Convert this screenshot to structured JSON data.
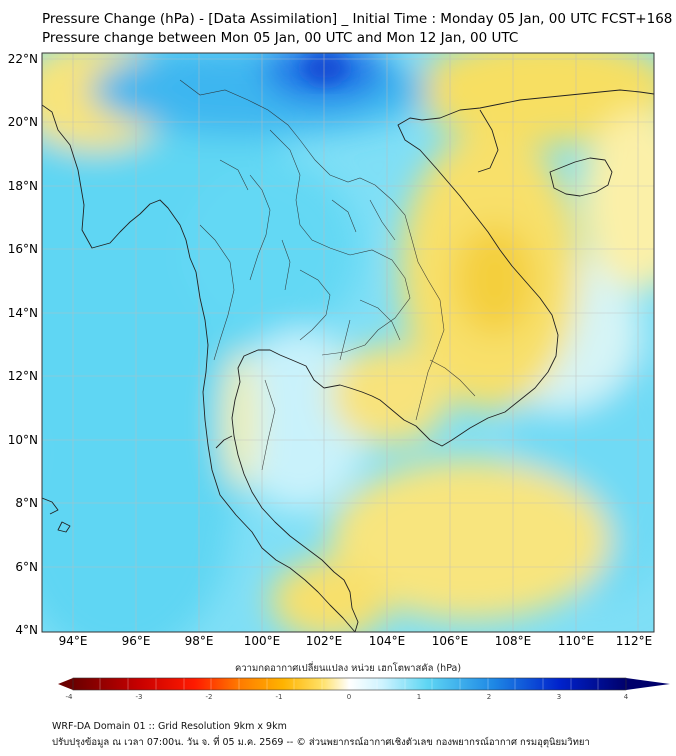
{
  "header": {
    "title_line1": "Pressure Change (hPa) - [Data Assimilation] _ Initial Time : Monday 05 Jan, 00 UTC FCST+168",
    "title_line2": "Pressure change between Mon 05 Jan, 00 UTC and Mon 12 Jan, 00 UTC"
  },
  "map": {
    "lat_labels": [
      "22°N",
      "20°N",
      "18°N",
      "16°N",
      "14°N",
      "12°N",
      "10°N",
      "8°N",
      "6°N",
      "4°N"
    ],
    "lon_labels": [
      "94°E",
      "96°E",
      "98°E",
      "100°E",
      "102°E",
      "104°E",
      "106°E",
      "108°E",
      "110°E",
      "112°E"
    ],
    "lat_range": [
      4,
      22.2
    ],
    "lon_range": [
      93,
      112.5
    ],
    "colors": {
      "ocean": "#5fd6f3",
      "positive_strong": "#1e6fe6",
      "negative": "#f8dc55",
      "coastline": "#222222",
      "grid": "#bdbdbd"
    }
  },
  "colorbar": {
    "title": "ความกดอากาศเปลี่ยนแปลง หน่วย เฮกโตพาสคัล (hPa)",
    "ticks": [
      "-4",
      "-3",
      "-2",
      "-1",
      "0",
      "1",
      "2",
      "3",
      "4"
    ],
    "range": [
      -4,
      4
    ],
    "colors": [
      "#6b0000",
      "#c80000",
      "#ff1a00",
      "#ff7a00",
      "#ffb300",
      "#ffe066",
      "#ffffff",
      "#cdf3ff",
      "#5fd6f3",
      "#1e88e5",
      "#0022cc",
      "#00006b"
    ]
  },
  "footer": {
    "line1": "WRF-DA Domain 01 :: Grid Resolution 9km x 9km",
    "line2": "ปรับปรุงข้อมูล ณ เวลา 07:00น. วัน จ. ที่ 05 ม.ค. 2569 -- © ส่วนพยากรณ์อากาศเชิงตัวเลข กองพยากรณ์อากาศ กรมอุตุนิยมวิทยา"
  }
}
